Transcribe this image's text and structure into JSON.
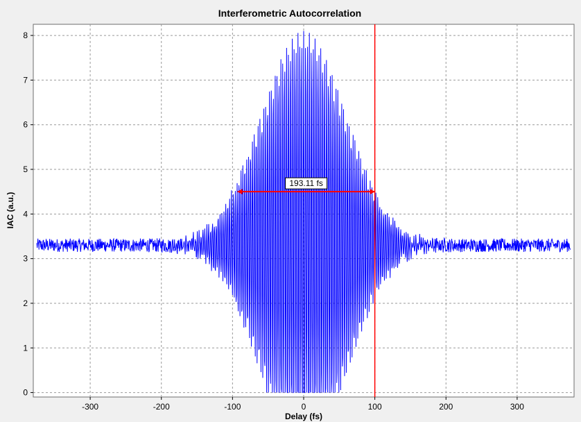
{
  "chart_data": {
    "type": "line",
    "title": "Interferometric Autocorrelation",
    "xlabel": "Delay (fs)",
    "ylabel": "IAC (a.u.)",
    "xlim": [
      -380,
      380
    ],
    "ylim": [
      -0.1,
      8.25
    ],
    "xticks": [
      -300,
      -200,
      -100,
      0,
      100,
      200,
      300
    ],
    "yticks": [
      0,
      1,
      2,
      3,
      4,
      5,
      6,
      7,
      8
    ],
    "grid": true,
    "grid_style": "dashed",
    "series": [
      {
        "color": "#0000ff",
        "baseline": 3.3,
        "baseline_noise": 0.15,
        "peak_max": 8.1,
        "peak_min": 0.0,
        "x_range": [
          -375,
          375
        ]
      }
    ],
    "cursor_line": {
      "x": 100,
      "color": "#ff0000"
    },
    "fwhm_marker": {
      "label": "193.11 fs",
      "x_start": -93,
      "x_end": 100,
      "y": 4.5,
      "color": "#ff0000"
    },
    "colors": {
      "plot_background": "#ffffff",
      "outer_background": "#f0f0f0",
      "grid": "#999999"
    }
  }
}
